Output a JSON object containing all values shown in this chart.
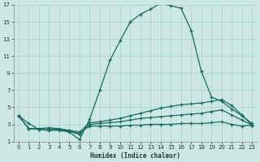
{
  "xlabel": "Humidex (Indice chaleur)",
  "bg_color": "#cce8e4",
  "grid_color": "#aad0cc",
  "line_color": "#1a6b60",
  "xlim": [
    -0.5,
    23.5
  ],
  "ylim": [
    1,
    17
  ],
  "xticks": [
    0,
    1,
    2,
    3,
    4,
    5,
    6,
    7,
    8,
    9,
    10,
    11,
    12,
    13,
    14,
    15,
    16,
    17,
    18,
    19,
    20,
    21,
    22,
    23
  ],
  "yticks": [
    1,
    3,
    5,
    7,
    9,
    11,
    13,
    15,
    17
  ],
  "line1_x": [
    0,
    1,
    2,
    3,
    4,
    5,
    6,
    7,
    8,
    9,
    10,
    11,
    12,
    13,
    14,
    15,
    16,
    17,
    18,
    19,
    20,
    21,
    22,
    23
  ],
  "line1_y": [
    4.0,
    3.1,
    2.4,
    2.3,
    2.3,
    2.1,
    1.2,
    3.6,
    7.0,
    10.5,
    12.8,
    15.0,
    15.9,
    16.5,
    17.2,
    16.9,
    16.6,
    14.0,
    9.2,
    6.2,
    5.7,
    4.8,
    4.0,
    3.1
  ],
  "line2_x": [
    0,
    1,
    2,
    3,
    4,
    5,
    6,
    7,
    8,
    9,
    10,
    11,
    12,
    13,
    14,
    15,
    16,
    17,
    18,
    19,
    20,
    21,
    22,
    23
  ],
  "line2_y": [
    4.0,
    2.5,
    2.5,
    2.6,
    2.5,
    2.3,
    2.1,
    3.2,
    3.3,
    3.5,
    3.7,
    4.0,
    4.3,
    4.6,
    4.9,
    5.1,
    5.3,
    5.4,
    5.5,
    5.7,
    5.9,
    5.2,
    4.1,
    2.9
  ],
  "line3_x": [
    0,
    1,
    2,
    3,
    4,
    5,
    6,
    7,
    8,
    9,
    10,
    11,
    12,
    13,
    14,
    15,
    16,
    17,
    18,
    19,
    20,
    21,
    22,
    23
  ],
  "line3_y": [
    4.0,
    2.5,
    2.5,
    2.5,
    2.4,
    2.2,
    2.0,
    2.8,
    2.8,
    2.8,
    2.8,
    2.9,
    2.9,
    3.0,
    3.0,
    3.0,
    3.1,
    3.1,
    3.1,
    3.2,
    3.3,
    3.0,
    2.8,
    2.9
  ],
  "line4_x": [
    0,
    1,
    2,
    3,
    4,
    5,
    6,
    7,
    8,
    9,
    10,
    11,
    12,
    13,
    14,
    15,
    16,
    17,
    18,
    19,
    20,
    21,
    22,
    23
  ],
  "line4_y": [
    4.0,
    2.5,
    2.4,
    2.3,
    2.4,
    2.2,
    1.8,
    3.0,
    3.1,
    3.2,
    3.3,
    3.5,
    3.7,
    3.8,
    3.9,
    4.0,
    4.1,
    4.2,
    4.3,
    4.5,
    4.7,
    4.1,
    3.5,
    2.9
  ]
}
